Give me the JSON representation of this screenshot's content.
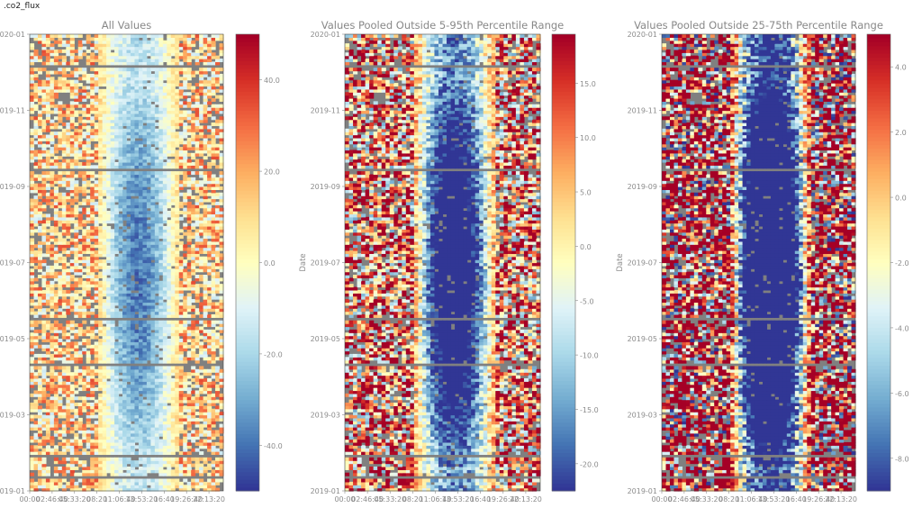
{
  "window": {
    "title": ".co2_flux"
  },
  "chart_data": [
    {
      "type": "heatmap",
      "title": "All Values",
      "xlabel": "",
      "ylabel": "",
      "x_tick_labels": [
        "00:00",
        "02:46:40",
        "05:33:20",
        "08:20",
        "11:06:40",
        "13:53:20",
        "16:40",
        "19:26:40",
        "22:13:20"
      ],
      "y_tick_labels": [
        "2019-01",
        "2019-03",
        "2019-05",
        "2019-07",
        "2019-09",
        "2019-11",
        "2020-01"
      ],
      "y_range": [
        "2019-01-01",
        "2020-01-01"
      ],
      "x_range": [
        "00:00",
        "24:00"
      ],
      "colorbar": {
        "range": [
          -50,
          50
        ],
        "ticks": [
          -40.0,
          -20.0,
          0.0,
          20.0,
          40.0
        ]
      },
      "missing_color": "#808080",
      "colormap": "RdYlBu_r"
    },
    {
      "type": "heatmap",
      "title": "Values Pooled Outside 5-95th Percentile Range",
      "xlabel": "",
      "ylabel": "Date",
      "x_tick_labels": [
        "00:00",
        "02:46:40",
        "05:33:20",
        "08:20",
        "11:06:40",
        "13:53:20",
        "16:40",
        "19:26:40",
        "22:13:20"
      ],
      "y_tick_labels": [
        "2019-01",
        "2019-03",
        "2019-05",
        "2019-07",
        "2019-09",
        "2019-11",
        "2020-01"
      ],
      "y_range": [
        "2019-01-01",
        "2020-01-01"
      ],
      "x_range": [
        "00:00",
        "24:00"
      ],
      "colorbar": {
        "range": [
          -22.5,
          19.5
        ],
        "ticks": [
          -20.0,
          -15.0,
          -10.0,
          -5.0,
          0.0,
          5.0,
          10.0,
          15.0
        ]
      },
      "missing_color": "#808080",
      "colormap": "RdYlBu_r"
    },
    {
      "type": "heatmap",
      "title": "Values Pooled Outside 25-75th Percentile Range",
      "xlabel": "",
      "ylabel": "Date",
      "x_tick_labels": [
        "00:00",
        "02:46:40",
        "05:33:20",
        "08:20",
        "11:06:40",
        "13:53:20",
        "16:40",
        "19:26:40",
        "22:13:20"
      ],
      "y_tick_labels": [
        "2019-01",
        "2019-03",
        "2019-05",
        "2019-07",
        "2019-09",
        "2019-11",
        "2020-01"
      ],
      "y_range": [
        "2019-01-01",
        "2020-01-01"
      ],
      "x_range": [
        "00:00",
        "24:00"
      ],
      "colorbar": {
        "range": [
          -9.0,
          5.0
        ],
        "ticks": [
          -8.0,
          -6.0,
          -4.0,
          -2.0,
          0.0,
          2.0,
          4.0
        ]
      },
      "missing_color": "#808080",
      "colormap": "RdYlBu_r"
    }
  ]
}
